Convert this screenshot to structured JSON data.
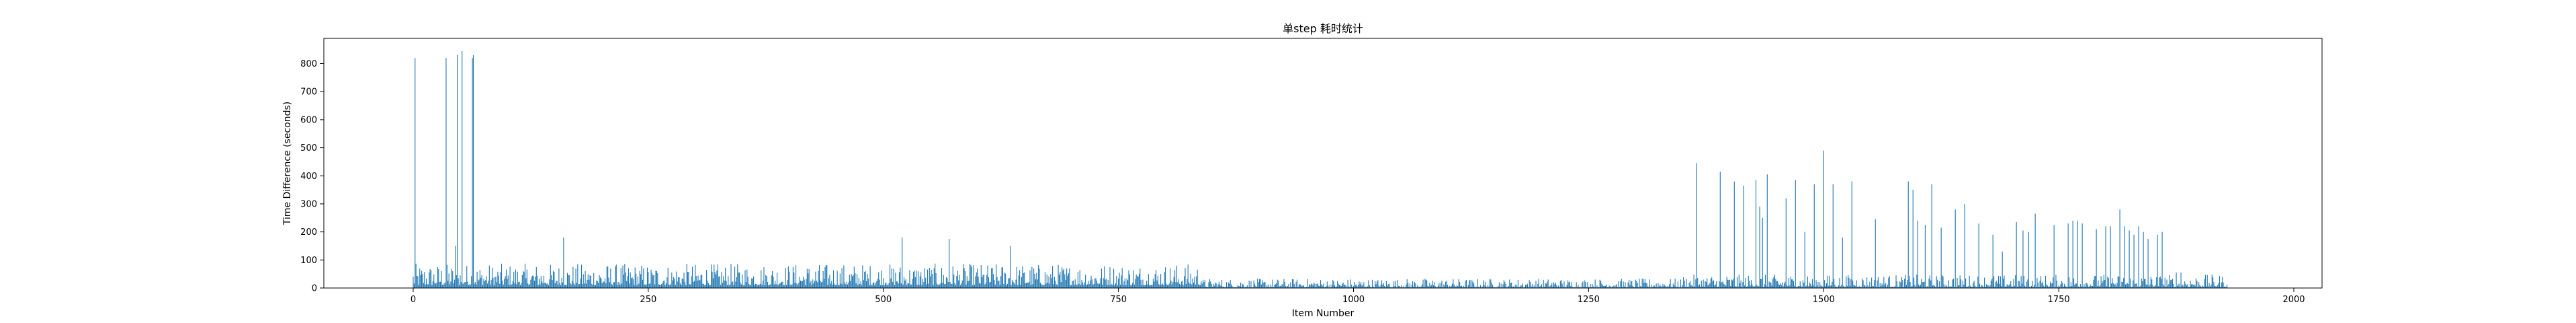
{
  "chart_data": {
    "type": "bar",
    "title": "单step 耗时统计",
    "xlabel": "Item Number",
    "ylabel": "Time Difference (seconds)",
    "xlim": [
      -95,
      2030
    ],
    "ylim": [
      0,
      890
    ],
    "x_ticks": [
      0,
      250,
      500,
      750,
      1000,
      1250,
      1500,
      1750,
      2000
    ],
    "y_ticks": [
      0,
      100,
      200,
      300,
      400,
      500,
      600,
      700,
      800
    ],
    "bar_color": "#1f77b4",
    "item_count": 1930,
    "segments": [
      {
        "start": 0,
        "end": 840,
        "baseline": 35,
        "noise": 35
      },
      {
        "start": 840,
        "end": 1350,
        "baseline": 10,
        "noise": 14
      },
      {
        "start": 1350,
        "end": 1930,
        "baseline": 14,
        "noise": 20
      }
    ],
    "spikes": [
      {
        "x": 2,
        "y": 820
      },
      {
        "x": 35,
        "y": 820
      },
      {
        "x": 45,
        "y": 150
      },
      {
        "x": 47,
        "y": 830
      },
      {
        "x": 52,
        "y": 845
      },
      {
        "x": 63,
        "y": 820
      },
      {
        "x": 64,
        "y": 830
      },
      {
        "x": 160,
        "y": 180
      },
      {
        "x": 520,
        "y": 180
      },
      {
        "x": 570,
        "y": 175
      },
      {
        "x": 635,
        "y": 150
      },
      {
        "x": 1365,
        "y": 445
      },
      {
        "x": 1390,
        "y": 415
      },
      {
        "x": 1405,
        "y": 380
      },
      {
        "x": 1415,
        "y": 365
      },
      {
        "x": 1428,
        "y": 385
      },
      {
        "x": 1432,
        "y": 290
      },
      {
        "x": 1435,
        "y": 250
      },
      {
        "x": 1440,
        "y": 405
      },
      {
        "x": 1460,
        "y": 320
      },
      {
        "x": 1470,
        "y": 385
      },
      {
        "x": 1480,
        "y": 200
      },
      {
        "x": 1490,
        "y": 370
      },
      {
        "x": 1500,
        "y": 490
      },
      {
        "x": 1510,
        "y": 370
      },
      {
        "x": 1520,
        "y": 180
      },
      {
        "x": 1530,
        "y": 380
      },
      {
        "x": 1555,
        "y": 245
      },
      {
        "x": 1590,
        "y": 380
      },
      {
        "x": 1595,
        "y": 350
      },
      {
        "x": 1600,
        "y": 240
      },
      {
        "x": 1608,
        "y": 225
      },
      {
        "x": 1615,
        "y": 370
      },
      {
        "x": 1625,
        "y": 215
      },
      {
        "x": 1640,
        "y": 280
      },
      {
        "x": 1650,
        "y": 300
      },
      {
        "x": 1665,
        "y": 230
      },
      {
        "x": 1680,
        "y": 190
      },
      {
        "x": 1690,
        "y": 130
      },
      {
        "x": 1705,
        "y": 235
      },
      {
        "x": 1712,
        "y": 205
      },
      {
        "x": 1718,
        "y": 200
      },
      {
        "x": 1725,
        "y": 265
      },
      {
        "x": 1745,
        "y": 225
      },
      {
        "x": 1760,
        "y": 230
      },
      {
        "x": 1765,
        "y": 240
      },
      {
        "x": 1770,
        "y": 240
      },
      {
        "x": 1775,
        "y": 230
      },
      {
        "x": 1790,
        "y": 210
      },
      {
        "x": 1800,
        "y": 220
      },
      {
        "x": 1805,
        "y": 220
      },
      {
        "x": 1815,
        "y": 280
      },
      {
        "x": 1820,
        "y": 220
      },
      {
        "x": 1825,
        "y": 205
      },
      {
        "x": 1830,
        "y": 190
      },
      {
        "x": 1835,
        "y": 220
      },
      {
        "x": 1840,
        "y": 200
      },
      {
        "x": 1845,
        "y": 175
      },
      {
        "x": 1855,
        "y": 190
      },
      {
        "x": 1860,
        "y": 200
      },
      {
        "x": 1875,
        "y": 55
      },
      {
        "x": 1880,
        "y": 55
      }
    ]
  }
}
